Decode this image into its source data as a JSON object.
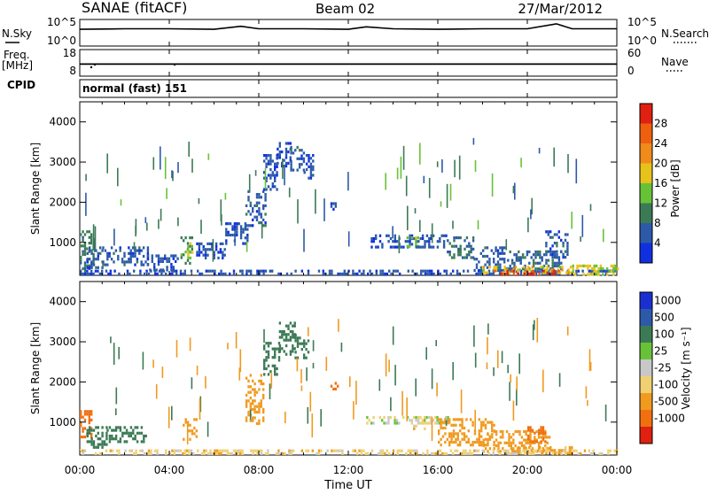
{
  "header": {
    "title": "SANAE (fitACF)",
    "beam": "Beam 02",
    "date": "27/Mar/2012",
    "cpid_text": "normal (fast) 151"
  },
  "side_labels": {
    "nsky": "N.Sky",
    "freq": "Freq.",
    "freq_unit": "[MHz]",
    "cpid": "CPID",
    "nsearch": "N.Search",
    "nave": "Nave"
  },
  "x_axis": {
    "label": "Time UT",
    "tick_labels": [
      "00:00",
      "04:00",
      "08:00",
      "12:00",
      "16:00",
      "20:00",
      "00:00"
    ],
    "range_hours": [
      0,
      24
    ]
  },
  "colors": {
    "power_scale": [
      "#1030e0",
      "#2c5aa8",
      "#3c7a55",
      "#68c238",
      "#e6c21a",
      "#f08a1a",
      "#ee6010",
      "#e02010"
    ],
    "velocity_scale": [
      "#1a2fd0",
      "#2c5aa8",
      "#3c7a55",
      "#68c238",
      "#c8c8c8",
      "#f0d070",
      "#f09a20",
      "#f07010",
      "#e02010"
    ],
    "ground_scatter_gray": "#bdbdbd"
  },
  "chart_data": [
    {
      "type": "line",
      "name": "noise-panel",
      "left_ticks": [
        "10^5",
        "10^0"
      ],
      "right_ticks": [
        "10^5",
        "10^0"
      ],
      "series": [
        {
          "name": "N.Sky",
          "x": [
            0,
            2,
            4,
            6,
            7.2,
            8,
            10,
            12,
            12.8,
            14,
            16,
            18,
            20,
            21.3,
            22,
            24
          ],
          "y": [
            3.2,
            3.3,
            3.3,
            3.2,
            3.8,
            3.3,
            3.3,
            3.2,
            3.7,
            3.3,
            3.2,
            3.3,
            3.3,
            4.3,
            3.3,
            3.3
          ]
        }
      ]
    },
    {
      "type": "line",
      "name": "freq-panel",
      "left_ticks": [
        "18",
        "8"
      ],
      "right_ticks": [
        "60",
        "0"
      ],
      "series": [
        {
          "name": "Freq.",
          "x": [
            0,
            6,
            12,
            18,
            24
          ],
          "y": [
            12.5,
            12.5,
            12.5,
            12.5,
            12.5
          ]
        }
      ]
    },
    {
      "type": "heatmap",
      "name": "power-panel",
      "ylabel": "Slant Range [km]",
      "ylim": [
        180,
        4500
      ],
      "y_ticks": [
        1000,
        2000,
        3000,
        4000
      ],
      "colorbar": {
        "label": "Power [dB]",
        "ticks": [
          "4",
          "8",
          "12",
          "16",
          "20",
          "24",
          "28"
        ],
        "range": [
          0,
          32
        ]
      },
      "regions": [
        {
          "t": [
            0.0,
            0.6
          ],
          "r": [
            300,
            1300
          ],
          "v": 9
        },
        {
          "t": [
            0.3,
            1.0
          ],
          "r": [
            400,
            900
          ],
          "v": 6
        },
        {
          "t": [
            1.0,
            3.0
          ],
          "r": [
            450,
            900
          ],
          "v": 6
        },
        {
          "t": [
            3.0,
            4.4
          ],
          "r": [
            300,
            700
          ],
          "v": 5
        },
        {
          "t": [
            4.5,
            5.0
          ],
          "r": [
            500,
            1150
          ],
          "v": 10
        },
        {
          "t": [
            4.8,
            5.1
          ],
          "r": [
            600,
            1000
          ],
          "v": 15
        },
        {
          "t": [
            5.2,
            6.5
          ],
          "r": [
            600,
            1000
          ],
          "v": 5
        },
        {
          "t": [
            6.5,
            7.5
          ],
          "r": [
            1000,
            1500
          ],
          "v": 5
        },
        {
          "t": [
            7.4,
            8.3
          ],
          "r": [
            1400,
            2300
          ],
          "v": 6
        },
        {
          "t": [
            8.2,
            8.8
          ],
          "r": [
            2300,
            3200
          ],
          "v": 5
        },
        {
          "t": [
            8.8,
            9.4
          ],
          "r": [
            2900,
            3500
          ],
          "v": 5
        },
        {
          "t": [
            9.4,
            10.0
          ],
          "r": [
            2800,
            3400
          ],
          "v": 6
        },
        {
          "t": [
            10.0,
            10.4
          ],
          "r": [
            2600,
            3200
          ],
          "v": 5
        },
        {
          "t": [
            11.2,
            11.4
          ],
          "r": [
            1800,
            2000
          ],
          "v": 5
        },
        {
          "t": [
            0.0,
            24.0
          ],
          "r": [
            180,
            320
          ],
          "v": 5
        },
        {
          "t": [
            13.0,
            15.0
          ],
          "r": [
            850,
            1200
          ],
          "v": 5
        },
        {
          "t": [
            14.6,
            15.2
          ],
          "r": [
            900,
            1150
          ],
          "v": 14
        },
        {
          "t": [
            15.0,
            16.4
          ],
          "r": [
            900,
            1200
          ],
          "v": 5
        },
        {
          "t": [
            16.4,
            17.6
          ],
          "r": [
            600,
            1150
          ],
          "v": 8
        },
        {
          "t": [
            17.6,
            19.0
          ],
          "r": [
            300,
            900
          ],
          "v": 6
        },
        {
          "t": [
            19.0,
            21.5
          ],
          "r": [
            300,
            800
          ],
          "v": 7
        },
        {
          "t": [
            20.8,
            21.8
          ],
          "r": [
            600,
            1300
          ],
          "v": 6
        },
        {
          "t": [
            18.0,
            22.0
          ],
          "r": [
            250,
            420
          ],
          "v": 18
        },
        {
          "t": [
            18.5,
            22.0
          ],
          "r": [
            200,
            320
          ],
          "v": 28
        },
        {
          "t": [
            22.0,
            24.0
          ],
          "r": [
            200,
            450
          ],
          "v": 16
        }
      ]
    },
    {
      "type": "heatmap",
      "name": "velocity-panel",
      "ylabel": "Slant Range [km]",
      "ylim": [
        180,
        4500
      ],
      "y_ticks": [
        1000,
        2000,
        3000,
        4000
      ],
      "colorbar": {
        "label": "Velocity [m s⁻¹]",
        "ticks": [
          "1000",
          "500",
          "100",
          "25",
          "-25",
          "-100",
          "-500",
          "-1000"
        ]
      },
      "regions": [
        {
          "t": [
            0.0,
            0.5
          ],
          "r": [
            600,
            1300
          ],
          "v": -800
        },
        {
          "t": [
            0.3,
            1.2
          ],
          "r": [
            400,
            900
          ],
          "v": 300
        },
        {
          "t": [
            1.2,
            3.0
          ],
          "r": [
            500,
            900
          ],
          "v": 300
        },
        {
          "t": [
            4.6,
            5.2
          ],
          "r": [
            600,
            1100
          ],
          "v": -400
        },
        {
          "t": [
            7.4,
            8.2
          ],
          "r": [
            1000,
            2200
          ],
          "v": -400
        },
        {
          "t": [
            8.2,
            8.9
          ],
          "r": [
            2200,
            3000
          ],
          "v": 200
        },
        {
          "t": [
            8.9,
            9.6
          ],
          "r": [
            2700,
            3500
          ],
          "v": 200
        },
        {
          "t": [
            9.6,
            10.2
          ],
          "r": [
            2600,
            3200
          ],
          "v": 300
        },
        {
          "t": [
            11.2,
            11.5
          ],
          "r": [
            1800,
            2000
          ],
          "v": -600
        },
        {
          "t": [
            12.8,
            16.5
          ],
          "r": [
            950,
            1150
          ],
          "v": 0
        },
        {
          "t": [
            14.8,
            15.4
          ],
          "r": [
            850,
            1150
          ],
          "v": -60
        },
        {
          "t": [
            16.0,
            18.5
          ],
          "r": [
            400,
            1100
          ],
          "v": -250
        },
        {
          "t": [
            18.0,
            21.0
          ],
          "r": [
            300,
            800
          ],
          "v": -250
        },
        {
          "t": [
            19.0,
            22.0
          ],
          "r": [
            250,
            400
          ],
          "v": -150
        },
        {
          "t": [
            20.0,
            20.8
          ],
          "r": [
            500,
            900
          ],
          "v": -800
        },
        {
          "t": [
            0.0,
            24.0
          ],
          "r": [
            180,
            320
          ],
          "v": -60
        }
      ]
    }
  ]
}
